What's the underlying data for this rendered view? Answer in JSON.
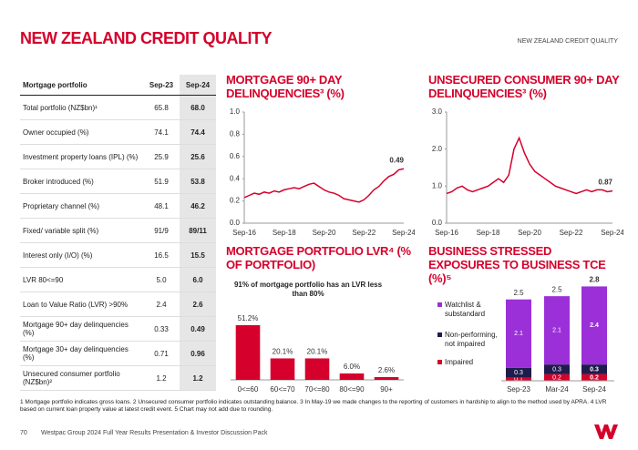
{
  "header": {
    "title": "NEW ZEALAND CREDIT QUALITY",
    "section": "NEW ZEALAND CREDIT QUALITY"
  },
  "table": {
    "header": [
      "Mortgage portfolio",
      "Sep-23",
      "Sep-24"
    ],
    "rows": [
      [
        "Total portfolio (NZ$bn)¹",
        "65.8",
        "68.0"
      ],
      [
        "Owner occupied (%)",
        "74.1",
        "74.4"
      ],
      [
        "Investment property loans (IPL) (%)",
        "25.9",
        "25.6"
      ],
      [
        "Broker introduced (%)",
        "51.9",
        "53.8"
      ],
      [
        "Proprietary channel (%)",
        "48.1",
        "46.2"
      ],
      [
        "Fixed/ variable split (%)",
        "91/9",
        "89/11"
      ],
      [
        "Interest only (I/O) (%)",
        "16.5",
        "15.5"
      ],
      [
        "LVR 80<=90",
        "5.0",
        "6.0"
      ],
      [
        "Loan to Value Ratio (LVR) >90%",
        "2.4",
        "2.6"
      ],
      [
        "Mortgage 90+ day delinquencies (%)",
        "0.33",
        "0.49"
      ],
      [
        "Mortgage 30+ day delinquencies (%)",
        "0.71",
        "0.96"
      ],
      [
        "Unsecured consumer portfolio (NZ$bn)²",
        "1.2",
        "1.2"
      ]
    ]
  },
  "chart_data": [
    {
      "type": "line",
      "title": "MORTGAGE 90+ DAY DELINQUENCIES³ (%)",
      "color": "#d5002b",
      "categories": [
        "Sep-16",
        null,
        null,
        null,
        null,
        null,
        null,
        null,
        "Sep-18",
        null,
        null,
        null,
        null,
        null,
        null,
        null,
        "Sep-20",
        null,
        null,
        null,
        null,
        null,
        null,
        null,
        "Sep-22",
        null,
        null,
        null,
        null,
        null,
        null,
        null,
        "Sep-24"
      ],
      "values": [
        0.23,
        0.25,
        0.27,
        0.26,
        0.28,
        0.27,
        0.29,
        0.28,
        0.3,
        0.31,
        0.32,
        0.31,
        0.33,
        0.35,
        0.36,
        0.33,
        0.3,
        0.28,
        0.27,
        0.25,
        0.22,
        0.21,
        0.2,
        0.19,
        0.21,
        0.25,
        0.3,
        0.33,
        0.38,
        0.42,
        0.44,
        0.48,
        0.49
      ],
      "ylim": [
        0,
        1
      ],
      "yticks": [
        {
          "value": 0,
          "label": "0.0"
        },
        0.2,
        0.4,
        0.6,
        0.8,
        {
          "value": 1,
          "label": "1.0"
        }
      ]
    },
    {
      "type": "line",
      "title": "UNSECURED CONSUMER 90+ DAY DELINQUENCIES³ (%)",
      "color": "#d5002b",
      "categories": [
        "Sep-16",
        null,
        null,
        null,
        null,
        null,
        null,
        null,
        "Sep-18",
        null,
        null,
        null,
        null,
        null,
        null,
        null,
        "Sep-20",
        null,
        null,
        null,
        null,
        null,
        null,
        null,
        "Sep-22",
        null,
        null,
        null,
        null,
        null,
        null,
        null,
        "Sep-24"
      ],
      "values": [
        0.8,
        0.85,
        0.95,
        1.0,
        0.9,
        0.85,
        0.9,
        0.95,
        1.0,
        1.1,
        1.2,
        1.1,
        1.3,
        2.0,
        2.3,
        1.9,
        1.6,
        1.4,
        1.3,
        1.2,
        1.1,
        1.0,
        0.95,
        0.9,
        0.85,
        0.8,
        0.85,
        0.9,
        0.85,
        0.9,
        0.9,
        0.85,
        0.87
      ],
      "ylim": [
        0,
        3
      ],
      "yticks": [
        {
          "value": 0,
          "label": "0.0"
        },
        {
          "value": 1,
          "label": "1.0"
        },
        {
          "value": 2,
          "label": "2.0"
        },
        {
          "value": 3,
          "label": "3.0"
        }
      ]
    },
    {
      "type": "bar",
      "title": "MORTGAGE PORTFOLIO LVR⁴ (% OF PORTFOLIO)",
      "annotation": "91% of mortgage portfolio has an LVR less than 80%",
      "color": "#d5002b",
      "categories": [
        "0<=60",
        "60<=70",
        "70<=80",
        "80<=90",
        "90+"
      ],
      "values": [
        51.2,
        20.1,
        20.1,
        6.0,
        2.6
      ],
      "value_labels": [
        "51.2%",
        "20.1%",
        "20.1%",
        "6.0%",
        "2.6%"
      ]
    },
    {
      "type": "stacked_bar",
      "title": "BUSINESS STRESSED EXPOSURES TO BUSINESS TCE (%)⁵",
      "categories": [
        "Sep-23",
        "Mar-24",
        "Sep-24"
      ],
      "series": [
        {
          "name": "Impaired",
          "color": "#d5002b",
          "values": [
            0.1,
            0.2,
            0.2
          ]
        },
        {
          "name": "Non-performing, not impaired",
          "color": "#1f1c4d",
          "values": [
            0.3,
            0.3,
            0.3
          ]
        },
        {
          "name": "Watchlist & substandard",
          "color": "#9b30d9",
          "values": [
            2.1,
            2.1,
            2.4
          ]
        }
      ],
      "totals": [
        2.5,
        2.5,
        2.8
      ]
    }
  ],
  "footnote": "1 Mortgage portfolio indicates gross loans. 2 Unsecured consumer portfolio indicates outstanding balance. 3 In May-19 we made changes to the reporting of customers in hardship to align to the method used by APRA. 4 LVR based on current loan property value at latest credit event. 5 Chart may not add due to rounding.",
  "footer": {
    "page": "70",
    "text": "Westpac Group 2024 Full Year Results Presentation & Investor Discussion Pack"
  }
}
